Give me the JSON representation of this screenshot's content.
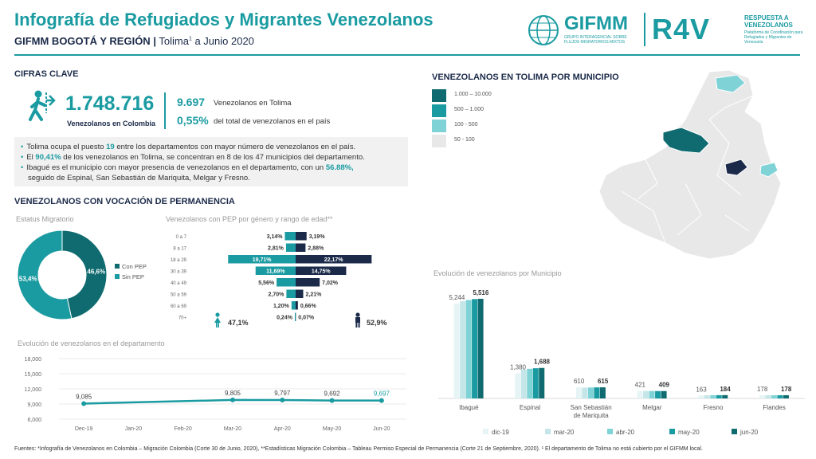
{
  "header": {
    "title": "Infografía de Refugiados y Migrantes Venezolanos",
    "subtitle_org": "GIFMM BOGOTÁ Y REGIÓN",
    "subtitle_sep": "|",
    "subtitle_place": "Tolima",
    "subtitle_sup": "1",
    "subtitle_date": " a Junio 2020",
    "logo_gifmm": "GIFMM",
    "logo_gifmm_sub": "GRUPO INTERAGENCIAL SOBRE FLUJOS MIGRATORIOS MIXTOS",
    "logo_r4v": "R4V",
    "logo_r4v_text": "RESPUESTA A VENEZOLANOS",
    "logo_r4v_sub": "Plataforma de Coordinación para Refugiados y Migrantes de Venezuela"
  },
  "key_figures": {
    "heading": "CIFRAS CLAVE",
    "colombia_total": "1.748.716",
    "colombia_label": "Venezolanos en Colombia",
    "tolima_total": "9.697",
    "tolima_label": "Venezolanos en Tolima",
    "tolima_pct": "0,55%",
    "tolima_pct_label": "del total de venezolanos en el país"
  },
  "bullets": {
    "b1_pre": "Tolima ocupa el puesto ",
    "b1_hl": "19",
    "b1_post": " entre los departamentos con mayor número de venezolanos en el país.",
    "b2_pre": "El ",
    "b2_hl": "90,41%",
    "b2_post": " de los venezolanos en Tolima, se concentran en 8 de los 47 municipios del departamento.",
    "b3_pre": "Ibagué es el municipio con mayor presencia de venezolanos en el departamento, con un ",
    "b3_hl": "56.88%,",
    "b3_line2": "seguido de Espinal, San Sebastián de Mariquita, Melgar y Fresno."
  },
  "permanence": {
    "heading": "VENEZOLANOS CON VOCACIÓN DE PERMANENCIA",
    "status_caption": "Estatus Migratorio",
    "pyramid_caption": "Venezolanos con PEP por género y rango de edad**",
    "female_pct": "47,1%",
    "male_pct": "52,9%"
  },
  "map": {
    "heading": "VENEZOLANOS EN TOLIMA POR MUNICIPIO",
    "legend": [
      {
        "label": "1.000 – 10.000",
        "color": "#0f6b70"
      },
      {
        "label": "500 – 1.000",
        "color": "#1a9ba1"
      },
      {
        "label": "100 - 500",
        "color": "#7fd3d6"
      },
      {
        "label": "50 - 100",
        "color": "#e8e8e8"
      }
    ]
  },
  "municipio_caption": "Evolución de venezolanos por Municipio",
  "evolution_caption": "Evolución de venezolanos en el departamento",
  "footer": "Fuentes: *Infografía de Venezolanos en Colombia – Migración Colombia (Corte 30 de Junio, 2020), **Estadísticas Migración Colombia – Tableau Permiso Especial de Permanencia (Corte 21 de Septiembre, 2020).   ¹  El departamento de Tolima no está cubierto por el GIFMM local.",
  "colors": {
    "teal": "#1a9ba1",
    "navy": "#1b2a49",
    "light_teal": "#7fd3d6"
  },
  "chart_data": [
    {
      "type": "pie",
      "title": "Estatus Migratorio",
      "categories": [
        "Con PEP",
        "Sin PEP"
      ],
      "values": [
        46.6,
        53.4
      ],
      "labels": [
        "46,6%",
        "53,4%"
      ],
      "colors": [
        "#0f6b70",
        "#1a9ba1"
      ],
      "legend": "right"
    },
    {
      "type": "bar",
      "title": "Venezolanos con PEP por género y rango de edad**",
      "categories": [
        "0 a 7",
        "8 a 17",
        "18 a 29",
        "30 a 39",
        "40 a 49",
        "50 a 59",
        "60 a 69",
        "70+"
      ],
      "series": [
        {
          "values": [
            3.14,
            2.81,
            19.71,
            11.69,
            5.56,
            2.7,
            1.2,
            0.24
          ],
          "labels": [
            "3,14%",
            "2,81%",
            "19,71%",
            "11,69%",
            "5,56%",
            "2,70%",
            "1,20%",
            "0,24%"
          ],
          "color": "#1a9ba1"
        },
        {
          "values": [
            3.19,
            2.88,
            22.17,
            14.75,
            7.02,
            2.21,
            0.66,
            0.07
          ],
          "labels": [
            "3,19%",
            "2,88%",
            "22,17%",
            "14,75%",
            "7,02%",
            "2,21%",
            "0,66%",
            "0,07%"
          ],
          "color": "#1b2a49"
        }
      ]
    },
    {
      "type": "line",
      "title": "Evolución de venezolanos en el departamento",
      "x": [
        "Dec-19",
        "Jan-20",
        "Feb-20",
        "Mar-20",
        "Apr-20",
        "May-20",
        "Jun-20"
      ],
      "points": [
        {
          "x": "Dec-19",
          "y": 9085,
          "label": "9,085"
        },
        {
          "x": "Mar-20",
          "y": 9805,
          "label": "9,805"
        },
        {
          "x": "Apr-20",
          "y": 9797,
          "label": "9,797"
        },
        {
          "x": "May-20",
          "y": 9692,
          "label": "9,692"
        },
        {
          "x": "Jun-20",
          "y": 9697,
          "label": "9,697"
        }
      ],
      "yticks": [
        "6,000",
        "9,000",
        "12,000",
        "15,000",
        "18,000"
      ],
      "ylim": [
        6000,
        18000
      ],
      "grid": true
    },
    {
      "type": "bar",
      "title": "Evolución de venezolanos por Municipio",
      "categories": [
        "Ibagué",
        "Espinal",
        "San Sebastián de Mariquita",
        "Melgar",
        "Fresno",
        "Flandes"
      ],
      "series": [
        {
          "name": "dic-19",
          "values": [
            5244,
            1380,
            610,
            421,
            163,
            178
          ],
          "color": "#e6f4f5"
        },
        {
          "name": "mar-20",
          "values": [
            5380,
            1600,
            600,
            415,
            175,
            176
          ],
          "color": "#c5e6e8"
        },
        {
          "name": "abr-20",
          "values": [
            5450,
            1640,
            605,
            410,
            180,
            177
          ],
          "color": "#7fd3d6"
        },
        {
          "name": "may-20",
          "values": [
            5500,
            1670,
            612,
            408,
            182,
            178
          ],
          "color": "#1a9ba1"
        },
        {
          "name": "jun-20",
          "values": [
            5516,
            1688,
            615,
            409,
            184,
            178
          ],
          "color": "#0f6b70"
        }
      ],
      "first_labels": [
        "5,244",
        "1,380",
        "610",
        "421",
        "163",
        "178"
      ],
      "last_labels": [
        "5,516",
        "1,688",
        "615",
        "409",
        "184",
        "178"
      ],
      "ylim": [
        0,
        6000
      ],
      "legend": "bottom"
    }
  ]
}
